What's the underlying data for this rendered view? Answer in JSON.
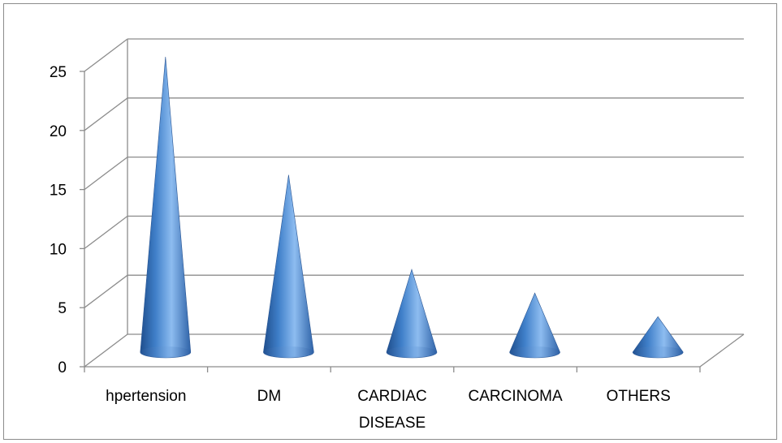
{
  "chart_data": {
    "type": "bar",
    "style": "3d-cone",
    "categories": [
      [
        "hpertension"
      ],
      [
        "DM"
      ],
      [
        "CARDIAC",
        "DISEASE"
      ],
      [
        "CARCINOMA"
      ],
      [
        "OTHERS"
      ]
    ],
    "values": [
      25,
      15,
      7,
      5,
      3
    ],
    "ylim": [
      0,
      25
    ],
    "yticks": [
      "0",
      "5",
      "10",
      "15",
      "20",
      "25"
    ],
    "grid": true,
    "legend": "none",
    "colors": {
      "cone_dark": "#1f4e8c",
      "cone_mid": "#3f7fc9",
      "cone_light": "#8dbcf0",
      "grid": "#8c8c8c"
    }
  }
}
